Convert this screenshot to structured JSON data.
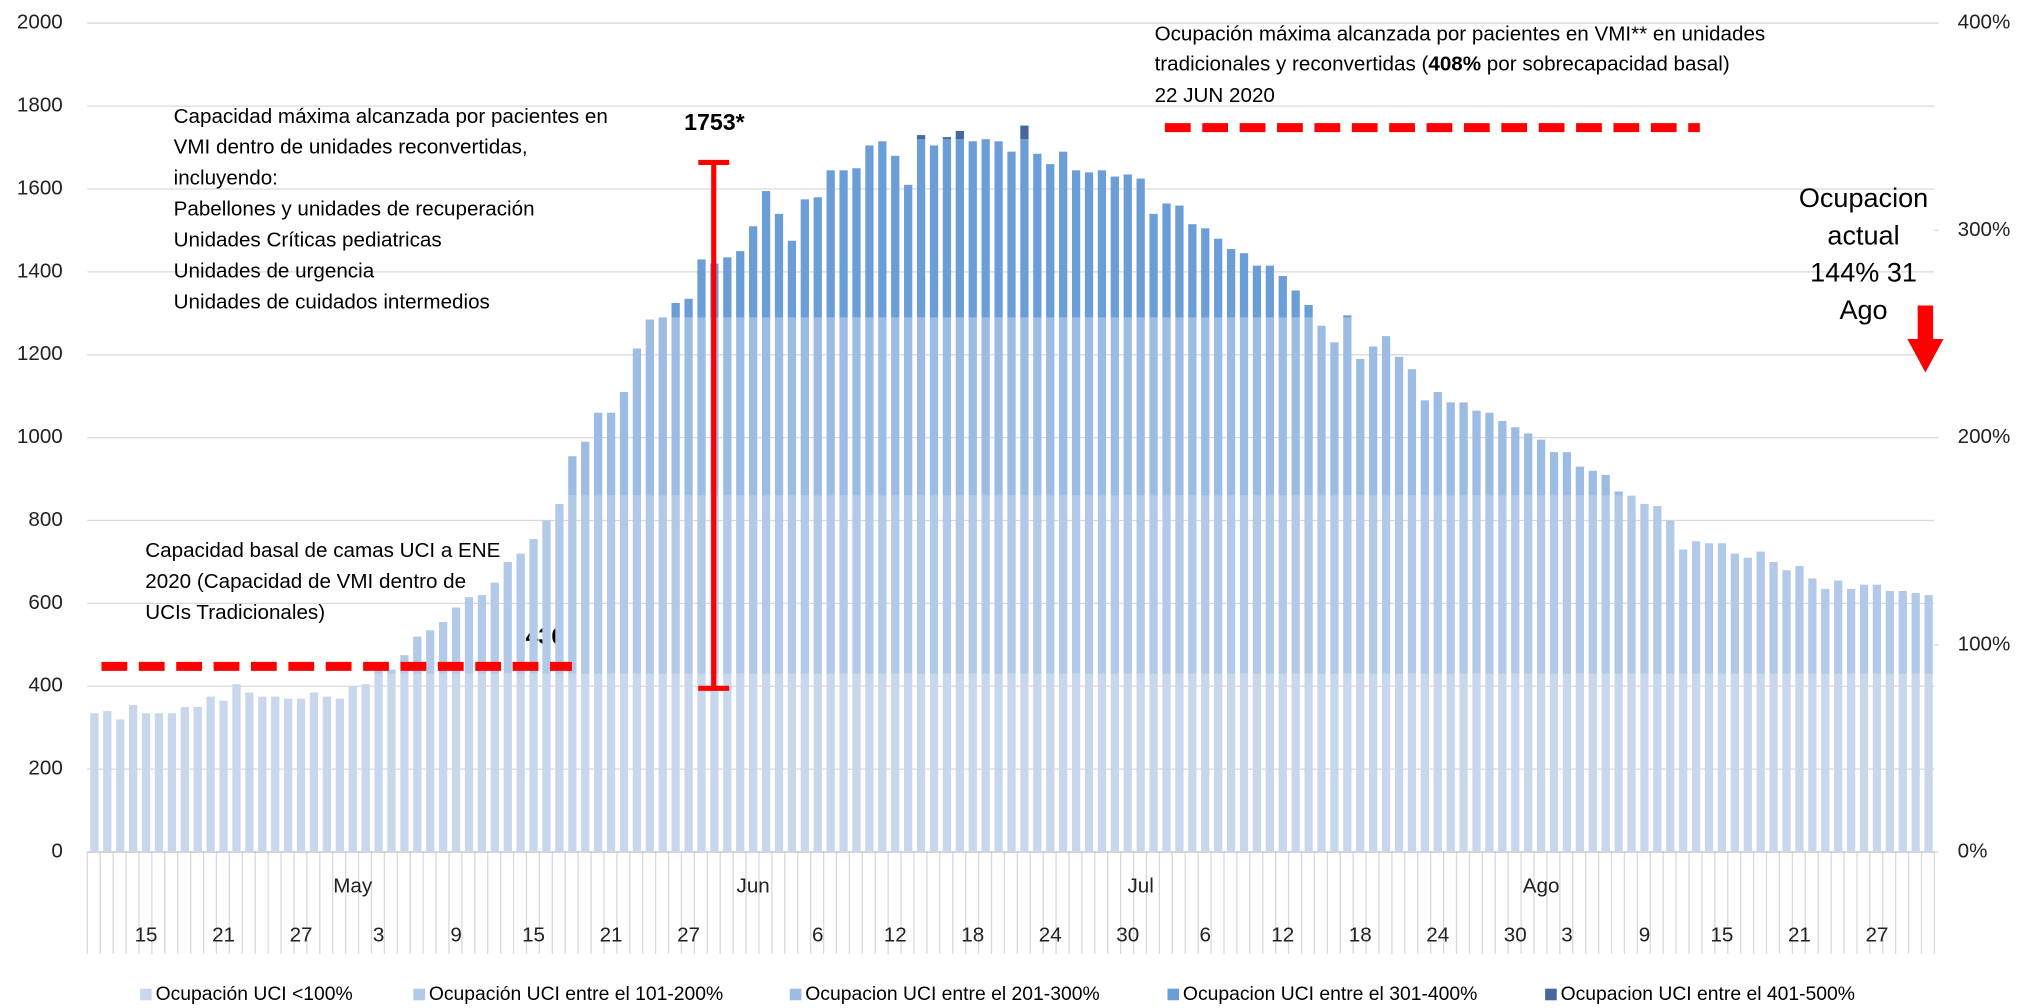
{
  "chart_data": {
    "type": "stacked_bar",
    "annotations": {
      "max_occ_1": "Ocupación máxima alcanzada por pacientes en VMI** en unidades",
      "max_occ_2a": "tradicionales y reconvertidas (",
      "max_occ_2b": "408%",
      "max_occ_2c": " por sobrecapacidad basal)",
      "max_occ_3": "22 JUN 2020",
      "cap_lines": [
        "Capacidad máxima alcanzada por pacientes en",
        "VMI dentro de unidades reconvertidas,",
        "incluyendo:",
        "Pabellones y unidades de recuperación",
        "Unidades Críticas pediatricas",
        "Unidades de urgencia",
        "Unidades de cuidados intermedios"
      ],
      "basal_lines": [
        "Capacidad basal de camas UCI a ENE",
        "2020 (Capacidad de VMI dentro de",
        "UCIs Tradicionales)"
      ],
      "basal_value": "430",
      "peak_value": "1753*",
      "current_lines": [
        "Ocupacion",
        "actual",
        "144% 31",
        "Ago"
      ]
    },
    "categories": [
      null,
      null,
      null,
      null,
      "15",
      null,
      null,
      null,
      null,
      null,
      "21",
      null,
      null,
      null,
      null,
      null,
      "27",
      null,
      null,
      null,
      null,
      null,
      "3",
      null,
      null,
      null,
      null,
      null,
      "9",
      null,
      null,
      null,
      null,
      null,
      "15",
      null,
      null,
      null,
      null,
      null,
      "21",
      null,
      null,
      null,
      null,
      null,
      "27",
      null,
      null,
      null,
      null,
      null,
      null,
      null,
      null,
      null,
      "6",
      null,
      null,
      null,
      null,
      null,
      "12",
      null,
      null,
      null,
      null,
      null,
      "18",
      null,
      null,
      null,
      null,
      null,
      "24",
      null,
      null,
      null,
      null,
      null,
      "30",
      null,
      null,
      null,
      null,
      null,
      "6",
      null,
      null,
      null,
      null,
      null,
      "12",
      null,
      null,
      null,
      null,
      null,
      "18",
      null,
      null,
      null,
      null,
      null,
      "24",
      null,
      null,
      null,
      null,
      null,
      "30",
      null,
      null,
      null,
      "3",
      null,
      null,
      null,
      null,
      null,
      "9",
      null,
      null,
      null,
      null,
      null,
      "15",
      null,
      null,
      null,
      null,
      null,
      "21",
      null,
      null,
      null,
      null,
      null,
      "27",
      null,
      null,
      null,
      null
    ],
    "month_categories": [
      null,
      null,
      null,
      null,
      null,
      null,
      null,
      null,
      null,
      null,
      null,
      null,
      null,
      null,
      null,
      null,
      null,
      null,
      null,
      null,
      "May",
      null,
      null,
      null,
      null,
      null,
      null,
      null,
      null,
      null,
      null,
      null,
      null,
      null,
      null,
      null,
      null,
      null,
      null,
      null,
      null,
      null,
      null,
      null,
      null,
      null,
      null,
      null,
      null,
      null,
      null,
      "Jun",
      null,
      null,
      null,
      null,
      null,
      null,
      null,
      null,
      null,
      null,
      null,
      null,
      null,
      null,
      null,
      null,
      null,
      null,
      null,
      null,
      null,
      null,
      null,
      null,
      null,
      null,
      null,
      null,
      null,
      "Jul",
      null,
      null,
      null,
      null,
      null,
      null,
      null,
      null,
      null,
      null,
      null,
      null,
      null,
      null,
      null,
      null,
      null,
      null,
      null,
      null,
      null,
      null,
      null,
      null,
      null,
      null,
      null,
      null,
      null,
      null,
      "Ago",
      null,
      null,
      null,
      null,
      null,
      null,
      null,
      null,
      null,
      null,
      null,
      null,
      null,
      null,
      null,
      null,
      null,
      null,
      null,
      null,
      null,
      null,
      null,
      null,
      null,
      null,
      null,
      null,
      null,
      null
    ],
    "series": [
      {
        "name": "Ocupación UCI <100%",
        "color": "#c9d7ec",
        "values": [
          335,
          340,
          320,
          355,
          335,
          335,
          335,
          350,
          350,
          375,
          365,
          405,
          385,
          375,
          375,
          370,
          370,
          385,
          375,
          370,
          400,
          405,
          430,
          430,
          430,
          430,
          430,
          430,
          430,
          430,
          430,
          430,
          430,
          430,
          430,
          430,
          430,
          430,
          430,
          430,
          430,
          430,
          430,
          430,
          430,
          430,
          430,
          430,
          430,
          430,
          430,
          430,
          430,
          430,
          430,
          430,
          430,
          430,
          430,
          430,
          430,
          430,
          430,
          430,
          430,
          430,
          430,
          430,
          430,
          430,
          430,
          430,
          430,
          430,
          430,
          430,
          430,
          430,
          430,
          430,
          430,
          430,
          430,
          430,
          430,
          430,
          430,
          430,
          430,
          430,
          430,
          430,
          430,
          430,
          430,
          430,
          430,
          430,
          430,
          430,
          430,
          430,
          430,
          430,
          430,
          430,
          430,
          430,
          430,
          430,
          430,
          430,
          430,
          430,
          430,
          430,
          430,
          430,
          430,
          430,
          430,
          430,
          430,
          430,
          430,
          430,
          430,
          430,
          430,
          430,
          430,
          430,
          430,
          430,
          430,
          430,
          430,
          430,
          430,
          430,
          430,
          430,
          430
        ]
      },
      {
        "name": "Ocupación UCI entre el 101-200%",
        "color": "#b2c9e7",
        "values": [
          0,
          0,
          0,
          0,
          0,
          0,
          0,
          0,
          0,
          0,
          0,
          0,
          0,
          0,
          0,
          0,
          0,
          0,
          0,
          0,
          0,
          0,
          10,
          10,
          45,
          90,
          105,
          125,
          160,
          185,
          190,
          220,
          270,
          290,
          325,
          370,
          410,
          430,
          430,
          430,
          430,
          430,
          430,
          430,
          430,
          430,
          430,
          430,
          430,
          430,
          430,
          430,
          430,
          430,
          430,
          430,
          430,
          430,
          430,
          430,
          430,
          430,
          430,
          430,
          430,
          430,
          430,
          430,
          430,
          430,
          430,
          430,
          430,
          430,
          430,
          430,
          430,
          430,
          430,
          430,
          430,
          430,
          430,
          430,
          430,
          430,
          430,
          430,
          430,
          430,
          430,
          430,
          430,
          430,
          430,
          430,
          430,
          430,
          430,
          430,
          430,
          430,
          430,
          430,
          430,
          430,
          430,
          430,
          430,
          430,
          430,
          430,
          430,
          430,
          430,
          430,
          430,
          430,
          430,
          430,
          410,
          405,
          370,
          300,
          320,
          315,
          315,
          290,
          280,
          295,
          270,
          250,
          260,
          230,
          205,
          225,
          205,
          215,
          215,
          200,
          200,
          195,
          190
        ]
      },
      {
        "name": "Ocupacion UCI entre el 201-300%",
        "color": "#9dbce3",
        "values": [
          0,
          0,
          0,
          0,
          0,
          0,
          0,
          0,
          0,
          0,
          0,
          0,
          0,
          0,
          0,
          0,
          0,
          0,
          0,
          0,
          0,
          0,
          0,
          0,
          0,
          0,
          0,
          0,
          0,
          0,
          0,
          0,
          0,
          0,
          0,
          0,
          0,
          95,
          130,
          200,
          200,
          250,
          355,
          425,
          430,
          430,
          430,
          430,
          430,
          430,
          430,
          430,
          430,
          430,
          430,
          430,
          430,
          430,
          430,
          430,
          430,
          430,
          430,
          430,
          430,
          430,
          430,
          430,
          430,
          430,
          430,
          430,
          430,
          430,
          430,
          430,
          430,
          430,
          430,
          430,
          430,
          430,
          430,
          430,
          430,
          430,
          430,
          430,
          430,
          430,
          430,
          430,
          430,
          430,
          430,
          410,
          370,
          430,
          330,
          360,
          385,
          335,
          305,
          230,
          250,
          225,
          225,
          205,
          200,
          180,
          165,
          150,
          135,
          105,
          105,
          70,
          60,
          50,
          10,
          0,
          0,
          0,
          0,
          0,
          0,
          0,
          0,
          0,
          0,
          0,
          0,
          0,
          0,
          0,
          0,
          0,
          0,
          0,
          0,
          0,
          0,
          0,
          0
        ]
      },
      {
        "name": "Ocupacion UCI entre el 301-400%",
        "color": "#6b9ed6",
        "values": [
          0,
          0,
          0,
          0,
          0,
          0,
          0,
          0,
          0,
          0,
          0,
          0,
          0,
          0,
          0,
          0,
          0,
          0,
          0,
          0,
          0,
          0,
          0,
          0,
          0,
          0,
          0,
          0,
          0,
          0,
          0,
          0,
          0,
          0,
          0,
          0,
          0,
          0,
          0,
          0,
          0,
          0,
          0,
          0,
          0,
          35,
          45,
          140,
          130,
          145,
          160,
          220,
          305,
          250,
          185,
          285,
          290,
          355,
          355,
          360,
          415,
          425,
          390,
          320,
          430,
          415,
          430,
          430,
          425,
          430,
          425,
          400,
          430,
          395,
          370,
          400,
          355,
          350,
          355,
          340,
          345,
          335,
          250,
          275,
          270,
          225,
          215,
          190,
          165,
          155,
          125,
          125,
          100,
          65,
          30,
          0,
          0,
          5,
          0,
          0,
          0,
          0,
          0,
          0,
          0,
          0,
          0,
          0,
          0,
          0,
          0,
          0,
          0,
          0,
          0,
          0,
          0,
          0,
          0,
          0,
          0,
          0,
          0,
          0,
          0,
          0,
          0,
          0,
          0,
          0,
          0,
          0,
          0,
          0,
          0,
          0,
          0,
          0,
          0,
          0,
          0,
          0,
          0
        ]
      },
      {
        "name": "Ocupacion UCI entre el 401-500%",
        "color": "#44699a",
        "values": [
          0,
          0,
          0,
          0,
          0,
          0,
          0,
          0,
          0,
          0,
          0,
          0,
          0,
          0,
          0,
          0,
          0,
          0,
          0,
          0,
          0,
          0,
          0,
          0,
          0,
          0,
          0,
          0,
          0,
          0,
          0,
          0,
          0,
          0,
          0,
          0,
          0,
          0,
          0,
          0,
          0,
          0,
          0,
          0,
          0,
          0,
          0,
          0,
          0,
          0,
          0,
          0,
          0,
          0,
          0,
          0,
          0,
          0,
          0,
          0,
          0,
          0,
          0,
          0,
          10,
          0,
          5,
          20,
          0,
          0,
          0,
          0,
          33,
          0,
          0,
          0,
          0,
          0,
          0,
          0,
          0,
          0,
          0,
          0,
          0,
          0,
          0,
          0,
          0,
          0,
          0,
          0,
          0,
          0,
          0,
          0,
          0,
          0,
          0,
          0,
          0,
          0,
          0,
          0,
          0,
          0,
          0,
          0,
          0,
          0,
          0,
          0,
          0,
          0,
          0,
          0,
          0,
          0,
          0,
          0,
          0,
          0,
          0,
          0,
          0,
          0,
          0,
          0,
          0,
          0,
          0,
          0,
          0,
          0,
          0,
          0,
          0,
          0,
          0,
          0,
          0,
          0,
          0
        ]
      }
    ],
    "ylim": [
      0,
      2000
    ],
    "yticks": [
      0,
      200,
      400,
      600,
      800,
      1000,
      1200,
      1400,
      1600,
      1800,
      2000
    ],
    "y2lim": [
      0,
      400
    ],
    "y2ticks": [
      {
        "value": 0,
        "label": "0%"
      },
      {
        "value": 100,
        "label": "100%"
      },
      {
        "value": 200,
        "label": "200%"
      },
      {
        "value": 300,
        "label": "300%"
      },
      {
        "value": 400,
        "label": "400%"
      }
    ],
    "grid": true,
    "legend": "bottom"
  }
}
